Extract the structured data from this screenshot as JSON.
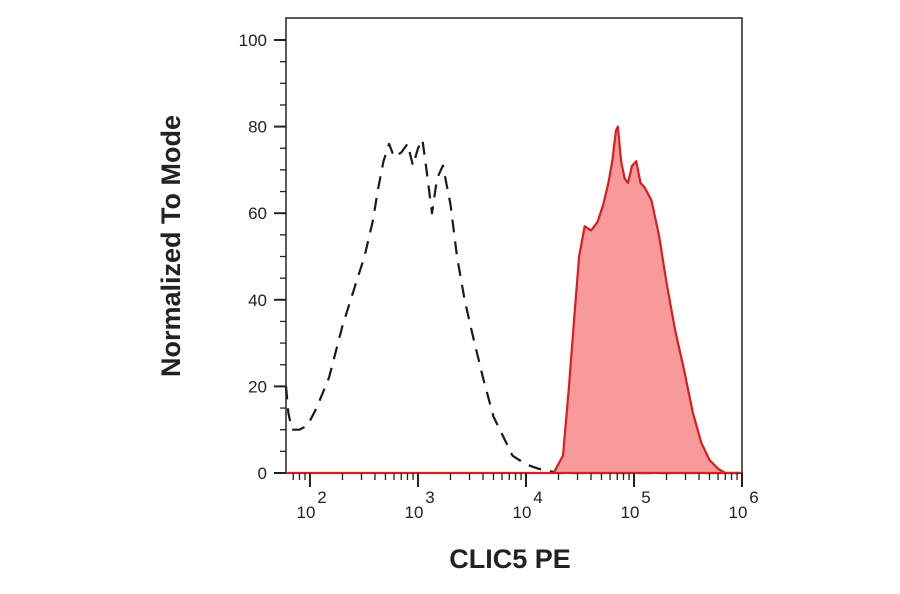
{
  "chart_data": {
    "type": "area",
    "title": "",
    "xlabel": "CLIC5 PE",
    "ylabel": "Normalized To Mode",
    "x_scale": "log",
    "xlim": [
      60,
      1000000
    ],
    "ylim": [
      0,
      100
    ],
    "grid": false,
    "legend": "none",
    "y_ticks": [
      "0",
      "20",
      "40",
      "60",
      "80",
      "100"
    ],
    "y_tick_values": [
      0,
      20,
      40,
      60,
      80,
      100
    ],
    "x_ticks": [
      {
        "value": 100,
        "base": "10",
        "exp": "2"
      },
      {
        "value": 1000,
        "base": "10",
        "exp": "3"
      },
      {
        "value": 10000,
        "base": "10",
        "exp": "4"
      },
      {
        "value": 100000,
        "base": "10",
        "exp": "5"
      },
      {
        "value": 1000000,
        "base": "10",
        "exp": "6"
      }
    ],
    "series": [
      {
        "style": "dashed",
        "color": "#1a1a1a",
        "points": [
          [
            60,
            20
          ],
          [
            63,
            14
          ],
          [
            68,
            10
          ],
          [
            80,
            10
          ],
          [
            95,
            11
          ],
          [
            115,
            15
          ],
          [
            150,
            22
          ],
          [
            200,
            34
          ],
          [
            260,
            43
          ],
          [
            320,
            50
          ],
          [
            380,
            58
          ],
          [
            430,
            66
          ],
          [
            480,
            72
          ],
          [
            540,
            76
          ],
          [
            600,
            73
          ],
          [
            700,
            74
          ],
          [
            800,
            76
          ],
          [
            900,
            71
          ],
          [
            1000,
            75
          ],
          [
            1100,
            77
          ],
          [
            1200,
            70
          ],
          [
            1350,
            60
          ],
          [
            1500,
            68
          ],
          [
            1700,
            71
          ],
          [
            2000,
            62
          ],
          [
            2300,
            50
          ],
          [
            2700,
            40
          ],
          [
            3200,
            32
          ],
          [
            4000,
            22
          ],
          [
            5000,
            13
          ],
          [
            6000,
            9
          ],
          [
            7500,
            4
          ],
          [
            10000,
            2
          ],
          [
            13000,
            1
          ],
          [
            20000,
            0
          ],
          [
            1000000,
            0
          ]
        ]
      },
      {
        "style": "filled",
        "color": "#d81e1e",
        "fill": "#f99a9a",
        "points": [
          [
            60,
            0
          ],
          [
            18000,
            0
          ],
          [
            22000,
            4
          ],
          [
            25000,
            20
          ],
          [
            28000,
            36
          ],
          [
            31000,
            50
          ],
          [
            35000,
            57
          ],
          [
            40000,
            56
          ],
          [
            46000,
            58
          ],
          [
            52000,
            62
          ],
          [
            58000,
            67
          ],
          [
            63000,
            72
          ],
          [
            68000,
            79
          ],
          [
            71000,
            80
          ],
          [
            76000,
            72
          ],
          [
            82000,
            68
          ],
          [
            88000,
            67
          ],
          [
            96000,
            71
          ],
          [
            105000,
            72
          ],
          [
            115000,
            67
          ],
          [
            125000,
            66
          ],
          [
            145000,
            63
          ],
          [
            170000,
            55
          ],
          [
            200000,
            44
          ],
          [
            240000,
            33
          ],
          [
            290000,
            24
          ],
          [
            350000,
            14
          ],
          [
            420000,
            7
          ],
          [
            500000,
            3
          ],
          [
            600000,
            1
          ],
          [
            700000,
            0
          ],
          [
            1000000,
            0
          ]
        ]
      }
    ]
  }
}
